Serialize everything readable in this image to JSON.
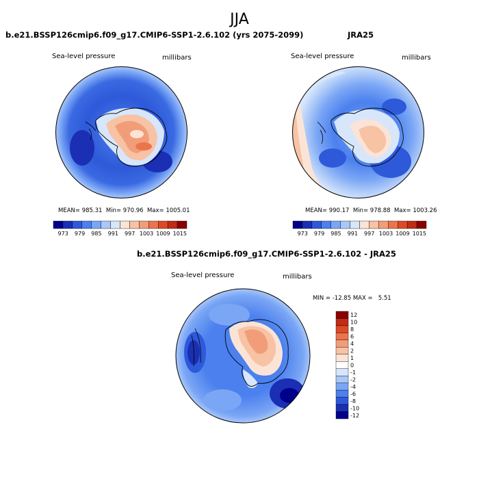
{
  "figure": {
    "title": "JJA"
  },
  "panels": [
    {
      "title": "b.e21.BSSP126cmip6.f09_g17.CMIP6-SSP1-2.6.102 (yrs 2075-2099)",
      "left_label": "Sea-level pressure",
      "right_label": "millibars",
      "stats": {
        "mean_label": "MEAN=",
        "mean": "985.31",
        "min_label": "Min=",
        "min": "970.96",
        "max_label": "Max=",
        "max": "1005.01"
      },
      "colorbar": {
        "ticks": [
          "973",
          "979",
          "985",
          "991",
          "997",
          "1003",
          "1009",
          "1015"
        ],
        "colors": [
          "#00008b",
          "#1a2fb3",
          "#2e59d9",
          "#4b80ee",
          "#7aa6f5",
          "#a9c7f8",
          "#d7e6fb",
          "#fbe4d6",
          "#f8c2a4",
          "#f29d79",
          "#ec744d",
          "#dd4a26",
          "#c02c14",
          "#8b0000"
        ]
      }
    },
    {
      "title": "JRA25",
      "left_label": "Sea-level pressure",
      "right_label": "millibars",
      "stats": {
        "mean_label": "MEAN=",
        "mean": "990.17",
        "min_label": "Min=",
        "min": "978.88",
        "max_label": "Max=",
        "max": "1003.26"
      },
      "colorbar": {
        "ticks": [
          "973",
          "979",
          "985",
          "991",
          "997",
          "1003",
          "1009",
          "1015"
        ],
        "colors": [
          "#00008b",
          "#1a2fb3",
          "#2e59d9",
          "#4b80ee",
          "#7aa6f5",
          "#a9c7f8",
          "#d7e6fb",
          "#fbe4d6",
          "#f8c2a4",
          "#f29d79",
          "#ec744d",
          "#dd4a26",
          "#c02c14",
          "#8b0000"
        ]
      }
    },
    {
      "title": "b.e21.BSSP126cmip6.f09_g17.CMIP6-SSP1-2.6.102 - JRA25",
      "left_label": "Sea-level pressure",
      "right_label": "millibars",
      "stats_text": "MIN = -12.85 MAX =   5.51",
      "colorbar": {
        "ticks": [
          "12",
          "10",
          "8",
          "6",
          "4",
          "2",
          "1",
          "0",
          "-1",
          "-2",
          "-4",
          "-6",
          "-8",
          "-10",
          "-12"
        ],
        "colors": [
          "#8b0000",
          "#c02c14",
          "#dd4a26",
          "#ec744d",
          "#f29d79",
          "#f8c2a4",
          "#fbe4d6",
          "#ffffff",
          "#d7e6fb",
          "#a9c7f8",
          "#7aa6f5",
          "#4b80ee",
          "#2e59d9",
          "#1a2fb3",
          "#00008b"
        ]
      }
    }
  ]
}
